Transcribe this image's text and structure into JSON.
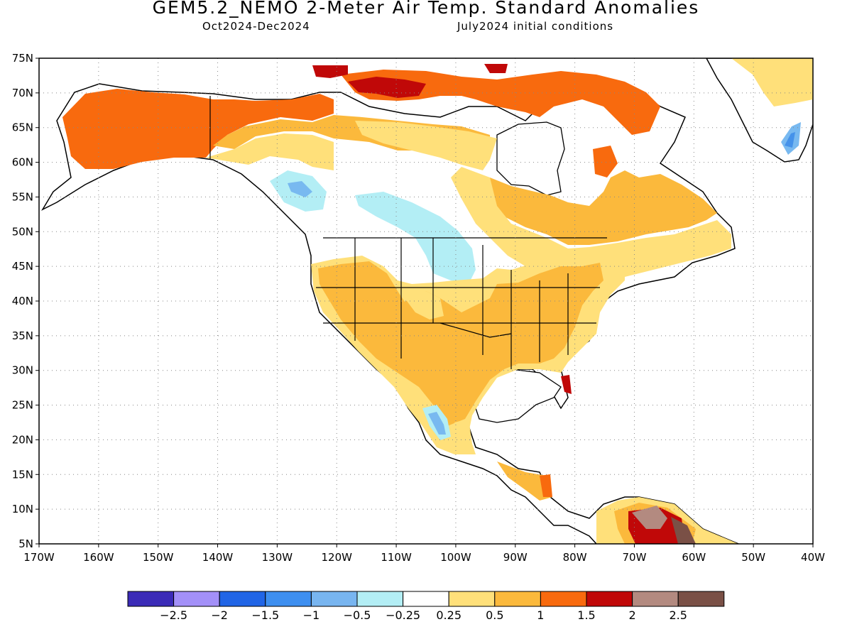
{
  "header": {
    "title": "GEM5.2_NEMO 2-Meter Air Temp. Standard Anomalies",
    "period": "Oct2024-Dec2024",
    "init": "July2024 initial conditions"
  },
  "map": {
    "lat_labels": [
      "75N",
      "70N",
      "65N",
      "60N",
      "55N",
      "50N",
      "45N",
      "40N",
      "35N",
      "30N",
      "25N",
      "20N",
      "15N",
      "10N",
      "5N"
    ],
    "lon_labels": [
      "170W",
      "160W",
      "150W",
      "140W",
      "130W",
      "120W",
      "110W",
      "100W",
      "90W",
      "80W",
      "70W",
      "60W",
      "50W",
      "40W"
    ],
    "lat_range": [
      5,
      75
    ],
    "lon_range": [
      -170,
      -40
    ],
    "gridlines": "dotted",
    "anomaly_colors": {
      "neg_0_5": "#b3eef5",
      "neg_1": "#78b9f0",
      "neg_1_5": "#4592ea",
      "pos_0_25": "#ffffff",
      "pos_0_5": "#ffe07a",
      "pos_1": "#fbb93c",
      "pos_1_5": "#f86a0e",
      "pos_2": "#c00808",
      "pos_2_5": "#b38a80",
      "pos_3": "#7a5046"
    }
  },
  "legend": {
    "labels": [
      "-2.5",
      "-2",
      "-1.5",
      "-1",
      "-0.5",
      "-0.25",
      "0.25",
      "0.5",
      "1",
      "1.5",
      "2",
      "2.5"
    ],
    "colors": [
      "#3b2bb7",
      "#a390f8",
      "#2165e6",
      "#3e8ff0",
      "#78b5f0",
      "#b3eef5",
      "#ffffff",
      "#ffe07a",
      "#fbb93c",
      "#f86a0e",
      "#c00808",
      "#b38a80",
      "#7a5046"
    ]
  }
}
